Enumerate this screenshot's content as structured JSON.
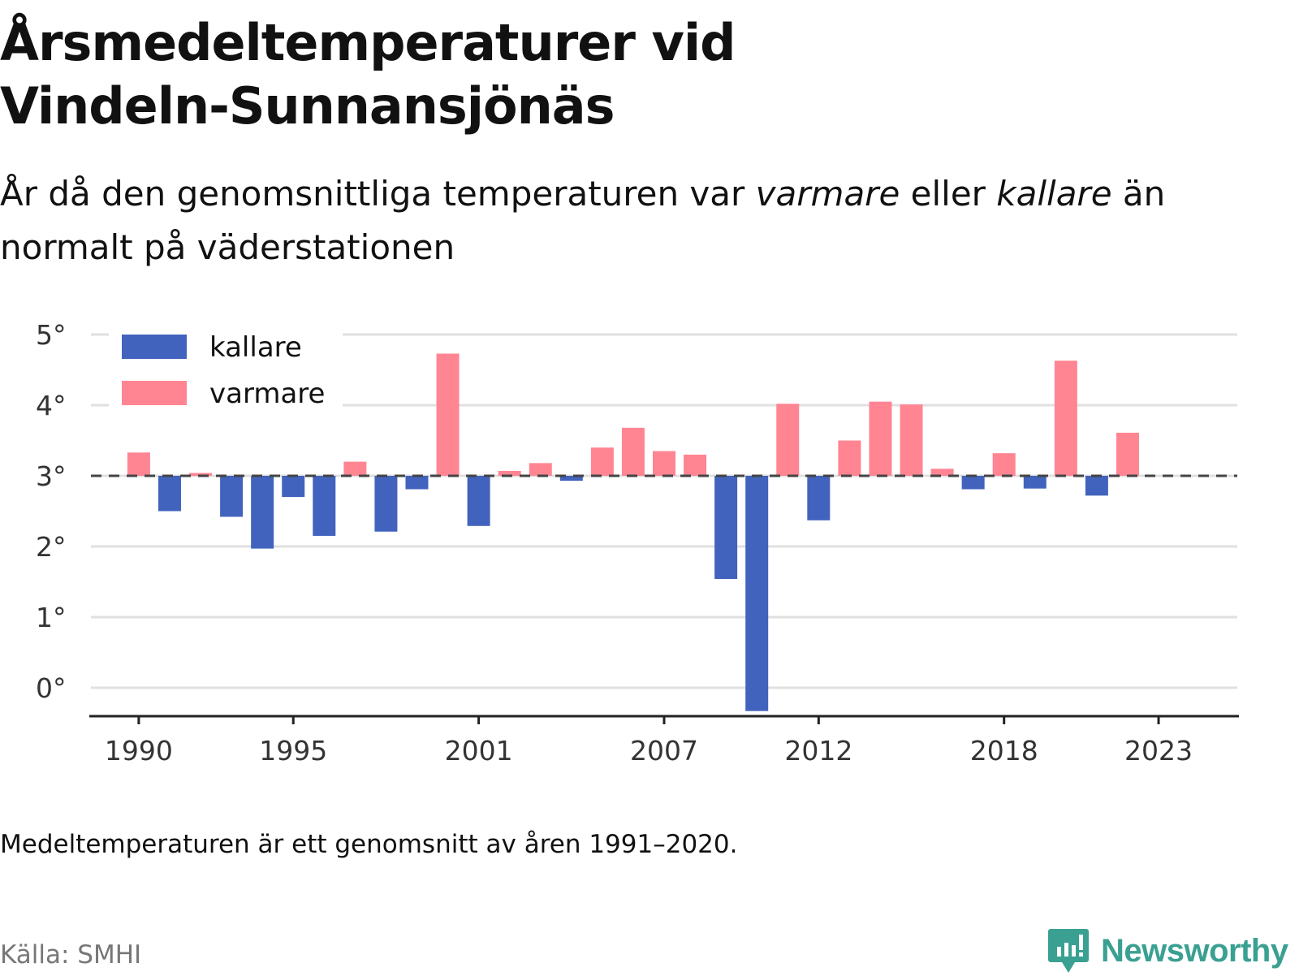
{
  "title": "Årsmedeltemperaturer vid Vindeln-Sunnansjönäs",
  "subtitle": {
    "part1": "År då den genomsnittliga temperaturen var ",
    "warm_word": "varmare",
    "part2": " eller ",
    "cold_word": "kallare",
    "part3": " än normalt på väderstationen"
  },
  "note": "Medeltemperaturen är ett genomsnitt av åren 1991–2020.",
  "source": "Källa: SMHI",
  "logo": {
    "text": "Newsworthy",
    "icon": "newsworthy-logo-icon"
  },
  "colors": {
    "kallare": "#4263bd",
    "varmare": "#ff8593",
    "grid": "#e0e0e0",
    "reference": "#444444",
    "axis": "#222222"
  },
  "chart_data": {
    "type": "bar",
    "legend": {
      "position": "top-left",
      "entries": [
        "kallare",
        "varmare"
      ]
    },
    "reference_line": {
      "value": 3.0,
      "style": "dashed"
    },
    "ylim": [
      -0.4,
      5.0
    ],
    "yticks": [
      0,
      1,
      2,
      3,
      4,
      5
    ],
    "ytick_labels": [
      "0°",
      "1°",
      "2°",
      "3°",
      "4°",
      "5°"
    ],
    "xlim": [
      1988.4,
      2025.6
    ],
    "xticks": [
      1990,
      1995,
      2001,
      2007,
      2012,
      2018,
      2023
    ],
    "xtick_labels": [
      "1990",
      "1995",
      "2001",
      "2007",
      "2012",
      "2018",
      "2023"
    ],
    "grid": true,
    "x": [
      1990,
      1991,
      1992,
      1993,
      1994,
      1995,
      1996,
      1997,
      1998,
      1999,
      2000,
      2001,
      2002,
      2003,
      2004,
      2005,
      2006,
      2007,
      2008,
      2009,
      2010,
      2011,
      2012,
      2013,
      2014,
      2015,
      2016,
      2017,
      2018,
      2019,
      2020,
      2021,
      2022
    ],
    "values": [
      3.33,
      2.5,
      3.04,
      2.42,
      1.97,
      2.7,
      2.15,
      3.2,
      2.21,
      2.81,
      4.73,
      2.29,
      3.07,
      3.18,
      2.93,
      3.4,
      3.68,
      3.35,
      3.3,
      1.54,
      -0.33,
      4.02,
      2.37,
      3.5,
      4.05,
      4.01,
      3.1,
      2.81,
      3.32,
      2.82,
      4.63,
      2.72,
      3.61
    ]
  }
}
